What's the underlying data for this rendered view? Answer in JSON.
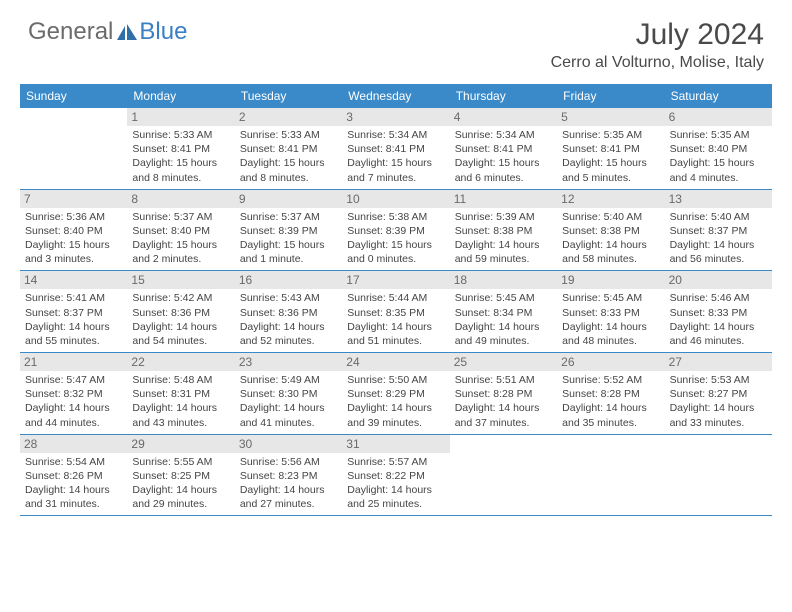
{
  "brand": {
    "general": "General",
    "blue": "Blue"
  },
  "title": "July 2024",
  "location": "Cerro al Volturno, Molise, Italy",
  "colors": {
    "header_bar": "#3a8ac9",
    "daynum_bg": "#e7e7e7",
    "text": "#454545",
    "title_text": "#4a4a4a"
  },
  "dows": [
    "Sunday",
    "Monday",
    "Tuesday",
    "Wednesday",
    "Thursday",
    "Friday",
    "Saturday"
  ],
  "weeks": [
    [
      {
        "n": "",
        "sr": "",
        "ss": "",
        "dl": ""
      },
      {
        "n": "1",
        "sr": "Sunrise: 5:33 AM",
        "ss": "Sunset: 8:41 PM",
        "dl": "Daylight: 15 hours and 8 minutes."
      },
      {
        "n": "2",
        "sr": "Sunrise: 5:33 AM",
        "ss": "Sunset: 8:41 PM",
        "dl": "Daylight: 15 hours and 8 minutes."
      },
      {
        "n": "3",
        "sr": "Sunrise: 5:34 AM",
        "ss": "Sunset: 8:41 PM",
        "dl": "Daylight: 15 hours and 7 minutes."
      },
      {
        "n": "4",
        "sr": "Sunrise: 5:34 AM",
        "ss": "Sunset: 8:41 PM",
        "dl": "Daylight: 15 hours and 6 minutes."
      },
      {
        "n": "5",
        "sr": "Sunrise: 5:35 AM",
        "ss": "Sunset: 8:41 PM",
        "dl": "Daylight: 15 hours and 5 minutes."
      },
      {
        "n": "6",
        "sr": "Sunrise: 5:35 AM",
        "ss": "Sunset: 8:40 PM",
        "dl": "Daylight: 15 hours and 4 minutes."
      }
    ],
    [
      {
        "n": "7",
        "sr": "Sunrise: 5:36 AM",
        "ss": "Sunset: 8:40 PM",
        "dl": "Daylight: 15 hours and 3 minutes."
      },
      {
        "n": "8",
        "sr": "Sunrise: 5:37 AM",
        "ss": "Sunset: 8:40 PM",
        "dl": "Daylight: 15 hours and 2 minutes."
      },
      {
        "n": "9",
        "sr": "Sunrise: 5:37 AM",
        "ss": "Sunset: 8:39 PM",
        "dl": "Daylight: 15 hours and 1 minute."
      },
      {
        "n": "10",
        "sr": "Sunrise: 5:38 AM",
        "ss": "Sunset: 8:39 PM",
        "dl": "Daylight: 15 hours and 0 minutes."
      },
      {
        "n": "11",
        "sr": "Sunrise: 5:39 AM",
        "ss": "Sunset: 8:38 PM",
        "dl": "Daylight: 14 hours and 59 minutes."
      },
      {
        "n": "12",
        "sr": "Sunrise: 5:40 AM",
        "ss": "Sunset: 8:38 PM",
        "dl": "Daylight: 14 hours and 58 minutes."
      },
      {
        "n": "13",
        "sr": "Sunrise: 5:40 AM",
        "ss": "Sunset: 8:37 PM",
        "dl": "Daylight: 14 hours and 56 minutes."
      }
    ],
    [
      {
        "n": "14",
        "sr": "Sunrise: 5:41 AM",
        "ss": "Sunset: 8:37 PM",
        "dl": "Daylight: 14 hours and 55 minutes."
      },
      {
        "n": "15",
        "sr": "Sunrise: 5:42 AM",
        "ss": "Sunset: 8:36 PM",
        "dl": "Daylight: 14 hours and 54 minutes."
      },
      {
        "n": "16",
        "sr": "Sunrise: 5:43 AM",
        "ss": "Sunset: 8:36 PM",
        "dl": "Daylight: 14 hours and 52 minutes."
      },
      {
        "n": "17",
        "sr": "Sunrise: 5:44 AM",
        "ss": "Sunset: 8:35 PM",
        "dl": "Daylight: 14 hours and 51 minutes."
      },
      {
        "n": "18",
        "sr": "Sunrise: 5:45 AM",
        "ss": "Sunset: 8:34 PM",
        "dl": "Daylight: 14 hours and 49 minutes."
      },
      {
        "n": "19",
        "sr": "Sunrise: 5:45 AM",
        "ss": "Sunset: 8:33 PM",
        "dl": "Daylight: 14 hours and 48 minutes."
      },
      {
        "n": "20",
        "sr": "Sunrise: 5:46 AM",
        "ss": "Sunset: 8:33 PM",
        "dl": "Daylight: 14 hours and 46 minutes."
      }
    ],
    [
      {
        "n": "21",
        "sr": "Sunrise: 5:47 AM",
        "ss": "Sunset: 8:32 PM",
        "dl": "Daylight: 14 hours and 44 minutes."
      },
      {
        "n": "22",
        "sr": "Sunrise: 5:48 AM",
        "ss": "Sunset: 8:31 PM",
        "dl": "Daylight: 14 hours and 43 minutes."
      },
      {
        "n": "23",
        "sr": "Sunrise: 5:49 AM",
        "ss": "Sunset: 8:30 PM",
        "dl": "Daylight: 14 hours and 41 minutes."
      },
      {
        "n": "24",
        "sr": "Sunrise: 5:50 AM",
        "ss": "Sunset: 8:29 PM",
        "dl": "Daylight: 14 hours and 39 minutes."
      },
      {
        "n": "25",
        "sr": "Sunrise: 5:51 AM",
        "ss": "Sunset: 8:28 PM",
        "dl": "Daylight: 14 hours and 37 minutes."
      },
      {
        "n": "26",
        "sr": "Sunrise: 5:52 AM",
        "ss": "Sunset: 8:28 PM",
        "dl": "Daylight: 14 hours and 35 minutes."
      },
      {
        "n": "27",
        "sr": "Sunrise: 5:53 AM",
        "ss": "Sunset: 8:27 PM",
        "dl": "Daylight: 14 hours and 33 minutes."
      }
    ],
    [
      {
        "n": "28",
        "sr": "Sunrise: 5:54 AM",
        "ss": "Sunset: 8:26 PM",
        "dl": "Daylight: 14 hours and 31 minutes."
      },
      {
        "n": "29",
        "sr": "Sunrise: 5:55 AM",
        "ss": "Sunset: 8:25 PM",
        "dl": "Daylight: 14 hours and 29 minutes."
      },
      {
        "n": "30",
        "sr": "Sunrise: 5:56 AM",
        "ss": "Sunset: 8:23 PM",
        "dl": "Daylight: 14 hours and 27 minutes."
      },
      {
        "n": "31",
        "sr": "Sunrise: 5:57 AM",
        "ss": "Sunset: 8:22 PM",
        "dl": "Daylight: 14 hours and 25 minutes."
      },
      {
        "n": "",
        "sr": "",
        "ss": "",
        "dl": ""
      },
      {
        "n": "",
        "sr": "",
        "ss": "",
        "dl": ""
      },
      {
        "n": "",
        "sr": "",
        "ss": "",
        "dl": ""
      }
    ]
  ]
}
